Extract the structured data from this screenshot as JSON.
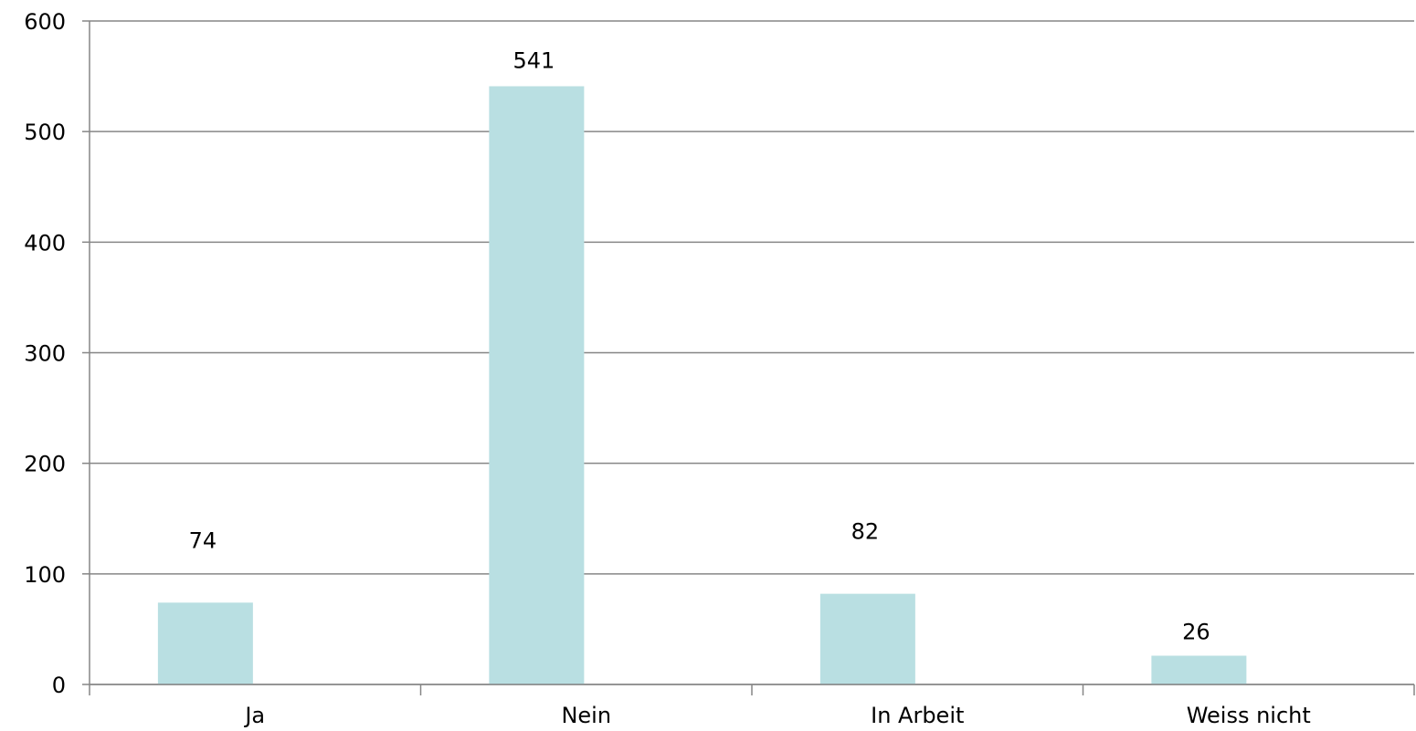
{
  "chart_data": {
    "type": "bar",
    "categories": [
      "Ja",
      "Nein",
      "In Arbeit",
      "Weiss nicht"
    ],
    "values": [
      74,
      541,
      82,
      26
    ],
    "data_labels": [
      "74",
      "541",
      "82",
      "26"
    ],
    "title": "",
    "xlabel": "",
    "ylabel": "",
    "ylim": [
      0,
      600
    ],
    "yticks": [
      0,
      100,
      200,
      300,
      400,
      500,
      600
    ],
    "ytick_labels": [
      "0",
      "100",
      "200",
      "300",
      "400",
      "500",
      "600"
    ],
    "grid": true,
    "legend": "none",
    "bar_color": "#b9dfe2",
    "grid_color": "#868686"
  }
}
